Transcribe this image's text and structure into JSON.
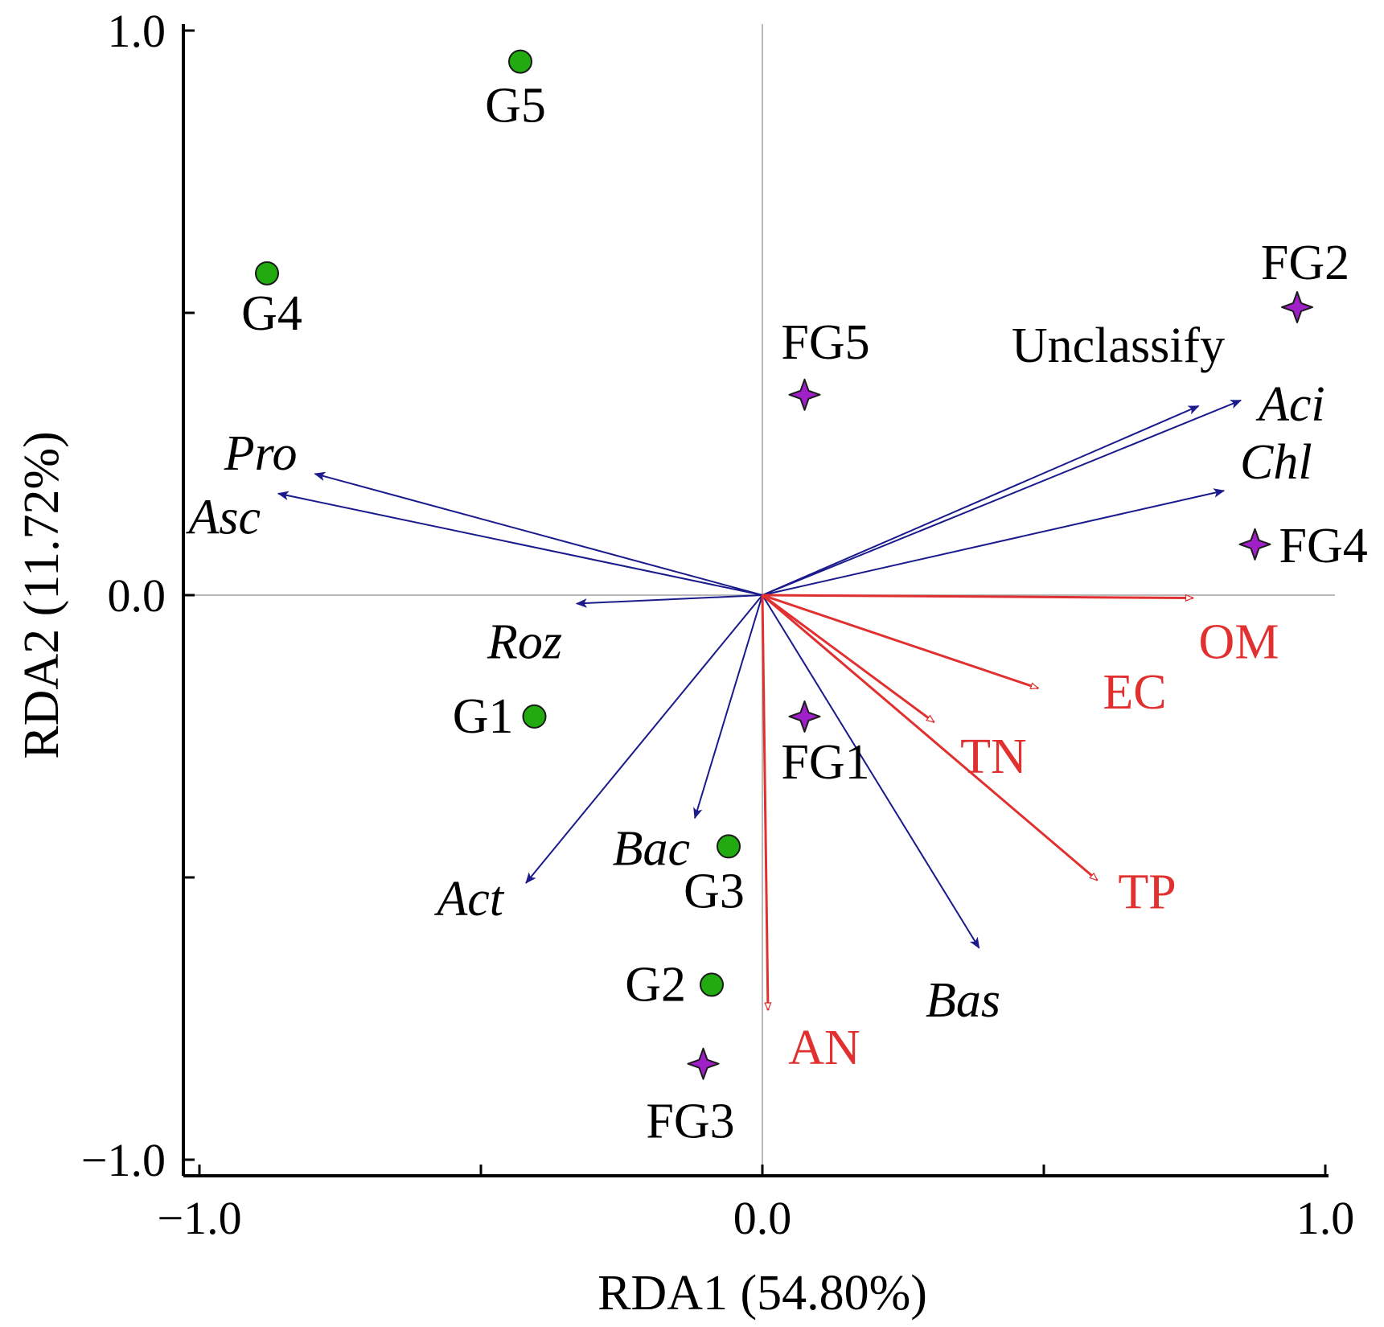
{
  "chart_data": {
    "type": "scatter",
    "xlabel": "RDA1 (54.80%)",
    "ylabel": "RDA2 (11.72%)",
    "xlim": [
      -1.0,
      1.0
    ],
    "ylim": [
      -1.0,
      1.0
    ],
    "x_ticks": [
      {
        "value": -1.0,
        "label": "−1.0"
      },
      {
        "value": -0.5,
        "label": ""
      },
      {
        "value": 0.0,
        "label": "0.0"
      },
      {
        "value": 0.5,
        "label": ""
      },
      {
        "value": 1.0,
        "label": "1.0"
      }
    ],
    "y_ticks": [
      {
        "value": -1.0,
        "label": "−1.0"
      },
      {
        "value": -0.5,
        "label": ""
      },
      {
        "value": 0.0,
        "label": "0.0"
      },
      {
        "value": 0.5,
        "label": ""
      },
      {
        "value": 1.0,
        "label": "1.0"
      }
    ],
    "zero_lines": true,
    "grid": false,
    "samples_circle": {
      "color": "#22aa11",
      "points": [
        {
          "label": "G1",
          "x": -0.405,
          "y": -0.215
        },
        {
          "label": "G2",
          "x": -0.09,
          "y": -0.69
        },
        {
          "label": "G3",
          "x": -0.06,
          "y": -0.445
        },
        {
          "label": "G4",
          "x": -0.88,
          "y": 0.57
        },
        {
          "label": "G5",
          "x": -0.43,
          "y": 0.945
        }
      ]
    },
    "samples_star": {
      "color": "#a020c8",
      "points": [
        {
          "label": "FG1",
          "x": 0.075,
          "y": -0.215
        },
        {
          "label": "FG2",
          "x": 0.95,
          "y": 0.51
        },
        {
          "label": "FG3",
          "x": -0.105,
          "y": -0.83
        },
        {
          "label": "FG4",
          "x": 0.875,
          "y": 0.09
        },
        {
          "label": "FG5",
          "x": 0.075,
          "y": 0.355
        }
      ]
    },
    "species_arrows": {
      "color": "#1a1a8c",
      "vectors": [
        {
          "label": "Pro",
          "italic": true,
          "x": -0.795,
          "y": 0.215
        },
        {
          "label": "Asc",
          "italic": true,
          "x": -0.86,
          "y": 0.18
        },
        {
          "label": "Roz",
          "italic": true,
          "x": -0.33,
          "y": -0.015
        },
        {
          "label": "Act",
          "italic": true,
          "x": -0.42,
          "y": -0.51
        },
        {
          "label": "Bac",
          "italic": true,
          "x": -0.12,
          "y": -0.395
        },
        {
          "label": "Bas",
          "italic": true,
          "x": 0.385,
          "y": -0.625
        },
        {
          "label": "Unclassify",
          "italic": false,
          "x": 0.775,
          "y": 0.335
        },
        {
          "label": "Aci",
          "italic": true,
          "x": 0.85,
          "y": 0.345
        },
        {
          "label": "Chl",
          "italic": true,
          "x": 0.82,
          "y": 0.185
        }
      ]
    },
    "environment_arrows": {
      "color": "#e03030",
      "vectors": [
        {
          "label": "OM",
          "x": 0.765,
          "y": -0.005
        },
        {
          "label": "EC",
          "x": 0.49,
          "y": -0.165
        },
        {
          "label": "TN",
          "x": 0.305,
          "y": -0.225
        },
        {
          "label": "TP",
          "x": 0.595,
          "y": -0.505
        },
        {
          "label": "AN",
          "x": 0.01,
          "y": -0.735
        }
      ]
    }
  }
}
